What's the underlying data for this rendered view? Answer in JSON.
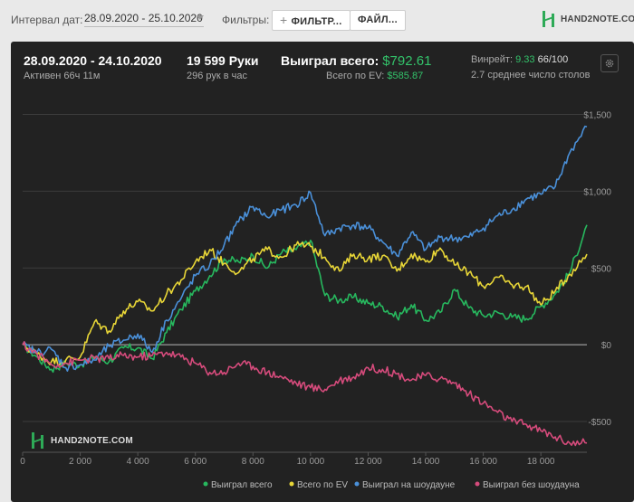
{
  "toolbar": {
    "interval_label": "Интервал дат:",
    "interval_value": "28.09.2020 - 25.10.2020",
    "filters_label": "Фильтры:",
    "filters_button": "ФИЛЬТР...",
    "file_button": "ФАЙЛ...",
    "brand": "HAND2NOTE.COM"
  },
  "summary": {
    "date_range": "28.09.2020 - 24.10.2020",
    "active": "Активен 66ч 11м",
    "hands": "19 599 Руки",
    "hands_per_hour": "296 рук в час",
    "won_total_label": "Выиграл всего:",
    "won_total_value": "$792.61",
    "ev_label": "Всего по EV:",
    "ev_value": "$585.87",
    "winrate_label": "Винрейт:",
    "winrate_value": "9.33",
    "winrate_unit": "66/100",
    "tables": "2.7 среднее число столов"
  },
  "chart_data": {
    "type": "line",
    "title": "",
    "xlabel": "",
    "ylabel": "",
    "xlim": [
      0,
      19599
    ],
    "ylim": [
      -700,
      1550
    ],
    "x_ticks": [
      0,
      2000,
      4000,
      6000,
      8000,
      10000,
      12000,
      14000,
      16000,
      18000
    ],
    "x_tick_labels": [
      "0",
      "2 000",
      "4 000",
      "6 000",
      "8 000",
      "10 000",
      "12 000",
      "14 000",
      "16 000",
      "18 000"
    ],
    "y_ticks": [
      1500,
      1000,
      500,
      0,
      -500
    ],
    "y_tick_labels": [
      "$1,500",
      "$1,000",
      "$500",
      "$0",
      "-$500"
    ],
    "legend_position": "bottom",
    "watermark": "HAND2NOTE.COM",
    "series": [
      {
        "name": "Выиграл всего",
        "color": "#27b85e",
        "x": [
          0,
          500,
          1000,
          1500,
          2000,
          2500,
          3000,
          3500,
          4000,
          4500,
          5000,
          5500,
          6000,
          6500,
          7000,
          7500,
          8000,
          8500,
          9000,
          9500,
          10000,
          10500,
          11000,
          11500,
          12000,
          12500,
          13000,
          13500,
          14000,
          14500,
          15000,
          15500,
          16000,
          16500,
          17000,
          17500,
          18000,
          18500,
          19000,
          19599
        ],
        "values": [
          0,
          -80,
          -160,
          -120,
          -130,
          -80,
          -110,
          -20,
          -20,
          -90,
          80,
          230,
          350,
          450,
          560,
          540,
          580,
          500,
          600,
          620,
          680,
          320,
          290,
          310,
          270,
          250,
          180,
          260,
          160,
          210,
          360,
          240,
          190,
          210,
          180,
          170,
          250,
          330,
          470,
          780
        ]
      },
      {
        "name": "Всего по EV",
        "color": "#e8d637",
        "x": [
          0,
          500,
          1000,
          1500,
          2000,
          2500,
          3000,
          3500,
          4000,
          4500,
          5000,
          5500,
          6000,
          6500,
          7000,
          7500,
          8000,
          8500,
          9000,
          9500,
          10000,
          10500,
          11000,
          11500,
          12000,
          12500,
          13000,
          13500,
          14000,
          14500,
          15000,
          15500,
          16000,
          16500,
          17000,
          17500,
          18000,
          18500,
          19000,
          19599
        ],
        "values": [
          0,
          -60,
          -110,
          -100,
          -80,
          150,
          90,
          220,
          280,
          220,
          330,
          420,
          540,
          620,
          530,
          470,
          560,
          620,
          570,
          650,
          640,
          570,
          480,
          590,
          560,
          580,
          480,
          590,
          540,
          630,
          520,
          470,
          380,
          440,
          390,
          380,
          260,
          350,
          460,
          590
        ]
      },
      {
        "name": "Выиграл на шоудауне",
        "color": "#4a90d9",
        "x": [
          0,
          500,
          1000,
          1500,
          2000,
          2500,
          3000,
          3500,
          4000,
          4500,
          5000,
          5500,
          6000,
          6500,
          7000,
          7500,
          8000,
          8500,
          9000,
          9500,
          10000,
          10500,
          11000,
          11500,
          12000,
          12500,
          13000,
          13500,
          14000,
          14500,
          15000,
          15500,
          16000,
          16500,
          17000,
          17500,
          18000,
          18500,
          19000,
          19599
        ],
        "values": [
          0,
          -50,
          -30,
          -150,
          -130,
          -100,
          -10,
          30,
          70,
          -50,
          160,
          300,
          450,
          520,
          650,
          800,
          900,
          830,
          880,
          910,
          990,
          710,
          760,
          780,
          760,
          670,
          580,
          730,
          620,
          700,
          690,
          700,
          760,
          840,
          880,
          950,
          980,
          1030,
          1250,
          1420
        ]
      },
      {
        "name": "Выиграл без шоудауна",
        "color": "#d64b7c",
        "x": [
          0,
          500,
          1000,
          1500,
          2000,
          2500,
          3000,
          3500,
          4000,
          4500,
          5000,
          5500,
          6000,
          6500,
          7000,
          7500,
          8000,
          8500,
          9000,
          9500,
          10000,
          10500,
          11000,
          11500,
          12000,
          12500,
          13000,
          13500,
          14000,
          14500,
          15000,
          15500,
          16000,
          16500,
          17000,
          17500,
          18000,
          18500,
          19000,
          19599
        ],
        "values": [
          0,
          -60,
          -130,
          -120,
          -100,
          -90,
          -90,
          -70,
          -80,
          -70,
          -50,
          -80,
          -120,
          -180,
          -180,
          -120,
          -140,
          -180,
          -210,
          -250,
          -280,
          -290,
          -230,
          -210,
          -150,
          -160,
          -190,
          -230,
          -200,
          -220,
          -250,
          -320,
          -380,
          -440,
          -500,
          -520,
          -560,
          -600,
          -640,
          -640
        ]
      }
    ]
  }
}
